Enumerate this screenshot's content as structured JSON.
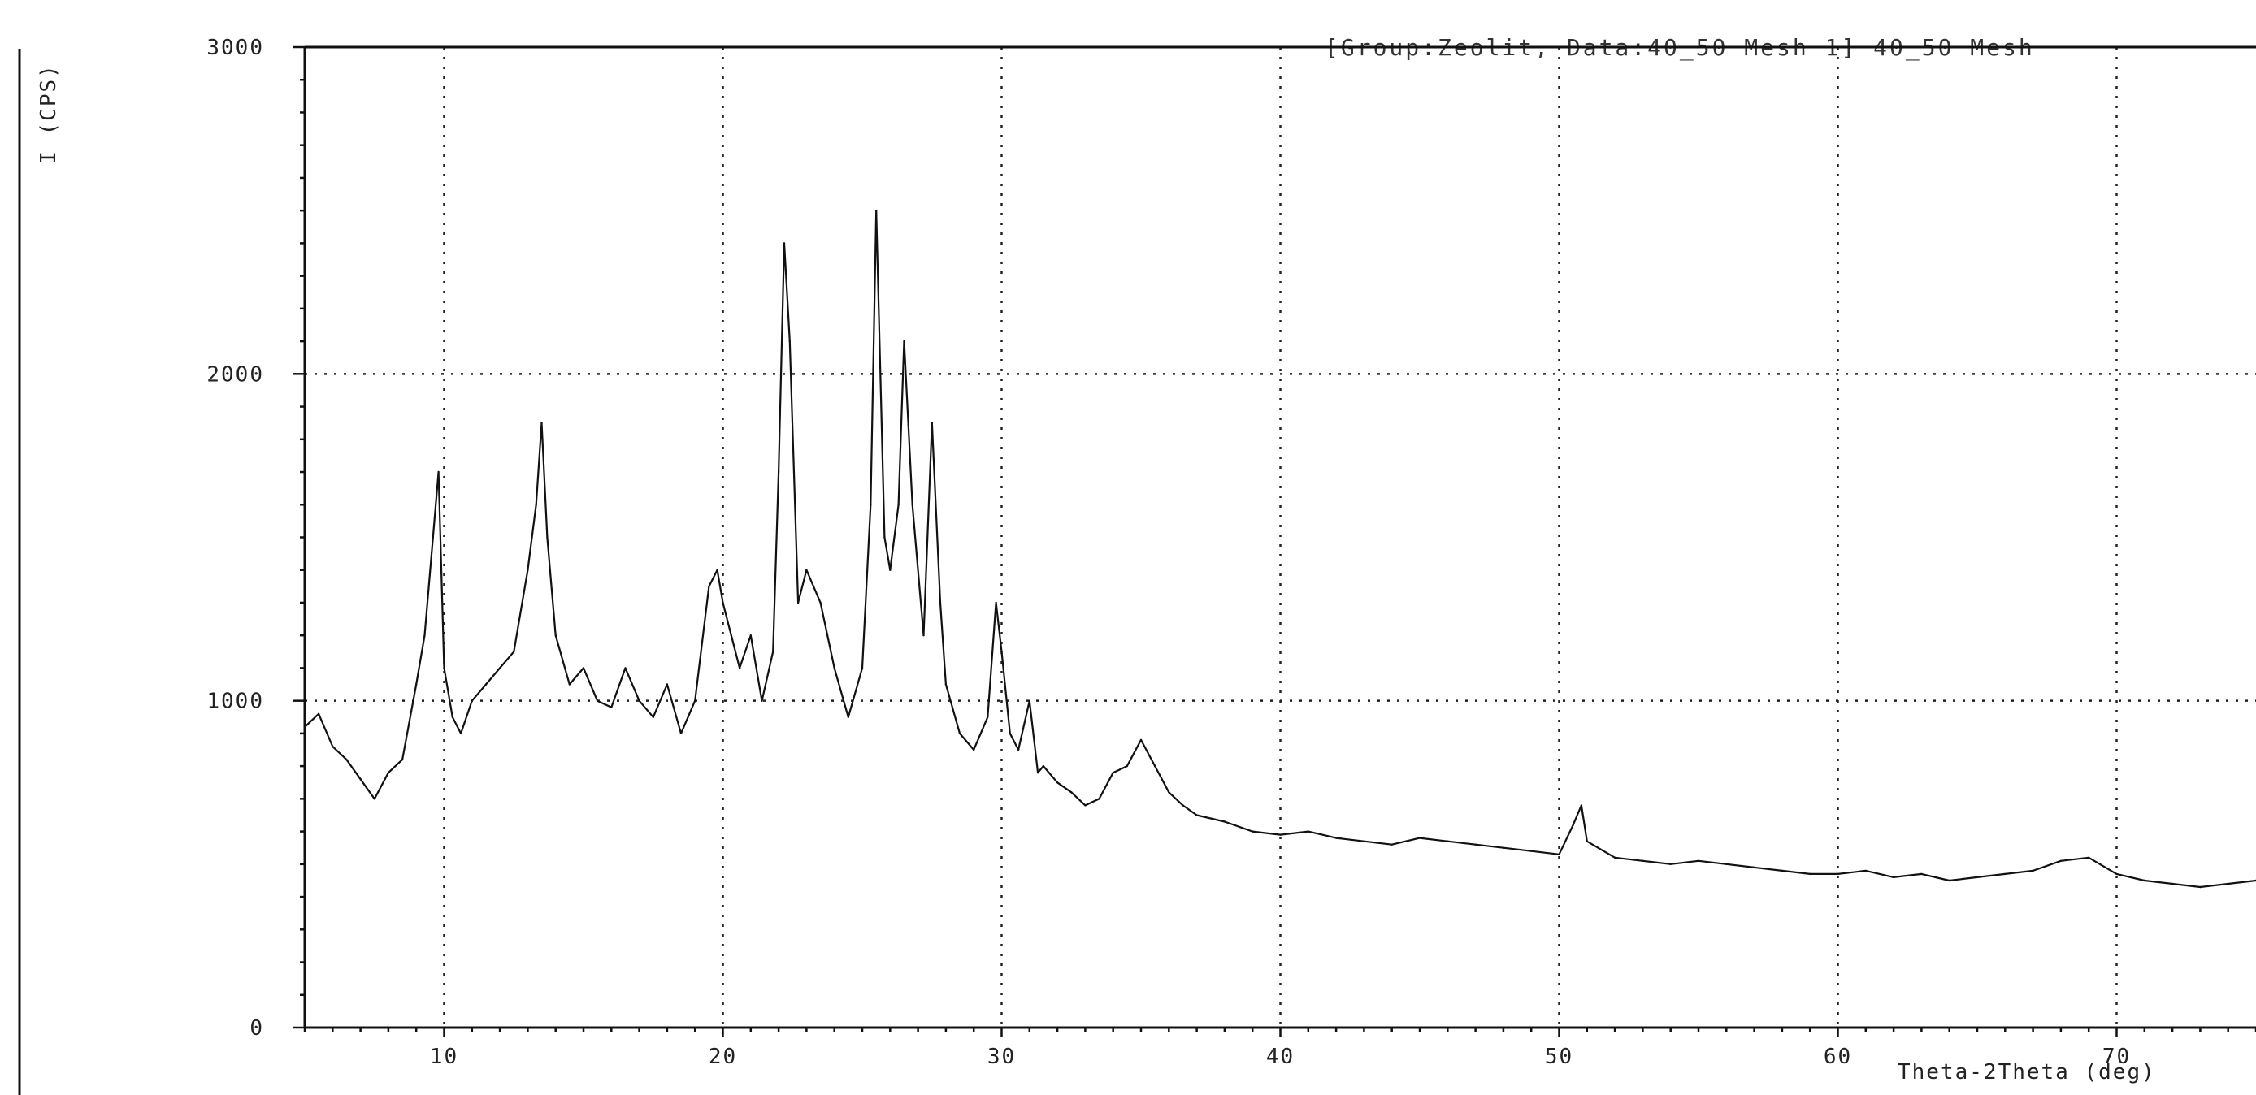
{
  "chart_data": {
    "type": "line",
    "header": "[Group:Zeolit, Data:40_50 Mesh 1] 40_50 Mesh",
    "xlabel": "Theta-2Theta (deg)",
    "ylabel": "I (CPS)",
    "xlim": [
      5,
      75
    ],
    "ylim": [
      0,
      3000
    ],
    "x_ticks": [
      10,
      20,
      30,
      40,
      50,
      60,
      70
    ],
    "y_ticks": [
      0,
      1000,
      2000,
      3000
    ],
    "y_tick_labels": [
      "0",
      "1000",
      "2000",
      "3000"
    ],
    "grid": true,
    "series": [
      {
        "x": [
          5.0,
          5.5,
          6.0,
          6.5,
          7.0,
          7.5,
          8.0,
          8.5,
          9.0,
          9.3,
          9.6,
          9.8,
          10.0,
          10.3,
          10.6,
          11.0,
          11.5,
          12.0,
          12.5,
          13.0,
          13.3,
          13.5,
          13.7,
          14.0,
          14.5,
          15.0,
          15.5,
          16.0,
          16.5,
          17.0,
          17.5,
          18.0,
          18.5,
          19.0,
          19.5,
          19.8,
          20.0,
          20.3,
          20.6,
          21.0,
          21.4,
          21.8,
          22.0,
          22.2,
          22.4,
          22.7,
          23.0,
          23.5,
          24.0,
          24.5,
          25.0,
          25.3,
          25.5,
          25.8,
          26.0,
          26.3,
          26.5,
          26.8,
          27.2,
          27.5,
          27.8,
          28.0,
          28.5,
          29.0,
          29.5,
          29.8,
          30.0,
          30.3,
          30.6,
          31.0,
          31.3,
          31.5,
          32.0,
          32.5,
          33.0,
          33.5,
          34.0,
          34.5,
          35.0,
          35.5,
          36.0,
          36.5,
          37.0,
          38.0,
          39.0,
          40.0,
          41.0,
          42.0,
          43.0,
          44.0,
          45.0,
          46.0,
          47.0,
          48.0,
          49.0,
          50.0,
          50.5,
          50.8,
          51.0,
          52.0,
          53.0,
          54.0,
          55.0,
          56.0,
          57.0,
          58.0,
          59.0,
          60.0,
          61.0,
          62.0,
          63.0,
          64.0,
          65.0,
          66.0,
          67.0,
          68.0,
          69.0,
          70.0,
          71.0,
          72.0,
          73.0,
          74.0,
          75.0
        ],
        "y": [
          920,
          960,
          860,
          820,
          760,
          700,
          780,
          820,
          1050,
          1200,
          1500,
          1700,
          1100,
          950,
          900,
          1000,
          1050,
          1100,
          1150,
          1400,
          1600,
          1850,
          1500,
          1200,
          1050,
          1100,
          1000,
          980,
          1100,
          1000,
          950,
          1050,
          900,
          1000,
          1350,
          1400,
          1300,
          1200,
          1100,
          1200,
          1000,
          1150,
          1700,
          2400,
          2100,
          1300,
          1400,
          1300,
          1100,
          950,
          1100,
          1600,
          2500,
          1500,
          1400,
          1600,
          2100,
          1600,
          1200,
          1850,
          1300,
          1050,
          900,
          850,
          950,
          1300,
          1150,
          900,
          850,
          1000,
          780,
          800,
          750,
          720,
          680,
          700,
          780,
          800,
          880,
          800,
          720,
          680,
          650,
          630,
          600,
          590,
          600,
          580,
          570,
          560,
          580,
          570,
          560,
          550,
          540,
          530,
          620,
          680,
          570,
          520,
          510,
          500,
          510,
          500,
          490,
          480,
          470,
          470,
          480,
          460,
          470,
          450,
          460,
          470,
          480,
          510,
          520,
          470,
          450,
          440,
          430,
          440,
          450
        ]
      }
    ]
  }
}
